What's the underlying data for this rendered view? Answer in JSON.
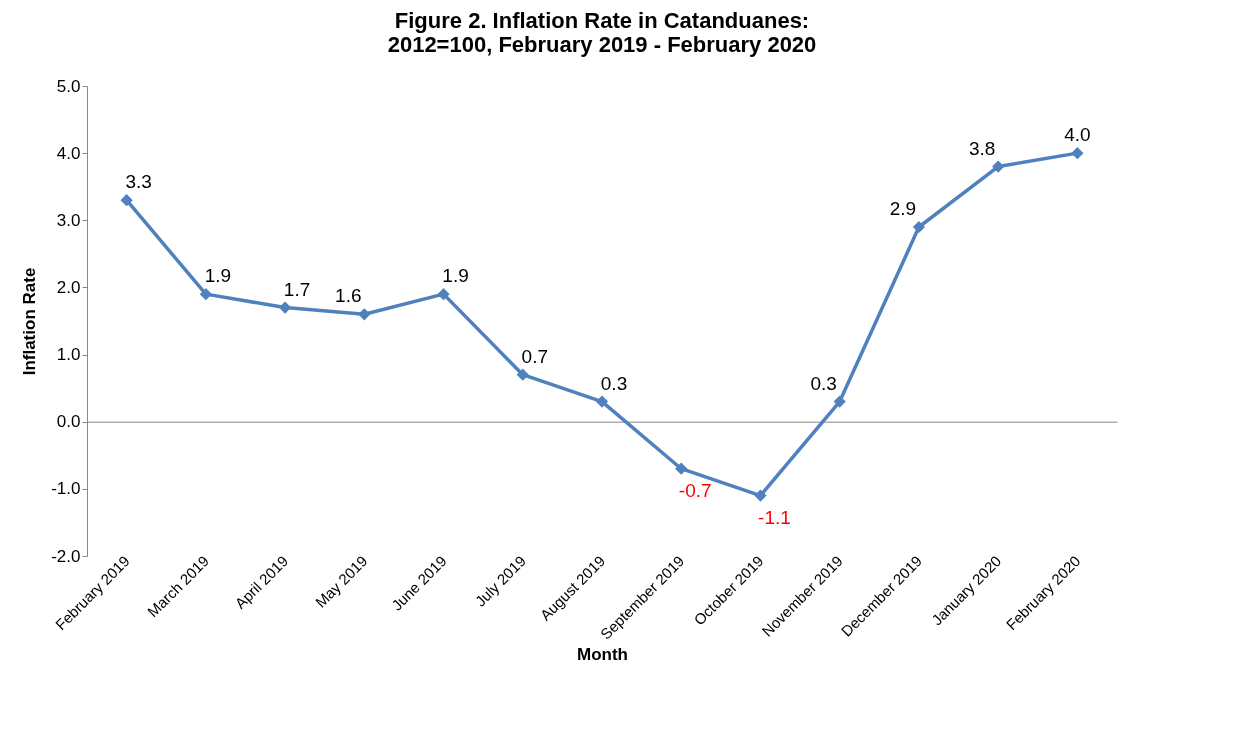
{
  "chart_data": {
    "type": "line",
    "title": "Figure 2. Inflation Rate in Catanduanes:\n2012=100, February 2019 - February 2020",
    "xlabel": "Month",
    "ylabel": "Inflation Rate",
    "categories": [
      "February 2019",
      "March 2019",
      "April 2019",
      "May 2019",
      "June 2019",
      "July 2019",
      "August 2019",
      "September 2019",
      "October 2019",
      "November 2019",
      "December 2019",
      "January 2020",
      "February 2020"
    ],
    "series": [
      {
        "color": "#4f81bd",
        "values": [
          3.3,
          1.9,
          1.7,
          1.6,
          1.9,
          0.7,
          0.3,
          -0.7,
          -1.1,
          0.3,
          2.9,
          3.8,
          4.0
        ],
        "value_labels": [
          "3.3",
          "1.9",
          "1.7",
          "1.6",
          "1.9",
          "0.7",
          "0.3",
          "-0.7",
          "-1.1",
          "0.3",
          "2.9",
          "3.8",
          "4.0"
        ]
      }
    ],
    "ylim": [
      -2,
      5
    ],
    "yticks": [
      {
        "value": -2,
        "label": "-2.0"
      },
      {
        "value": -1,
        "label": "-1.0"
      },
      {
        "value": 0,
        "label": "0.0"
      },
      {
        "value": 1,
        "label": "1.0"
      },
      {
        "value": 2,
        "label": "2.0"
      },
      {
        "value": 3,
        "label": "3.0"
      },
      {
        "value": 4,
        "label": "4.0"
      },
      {
        "value": 5,
        "label": "5.0"
      }
    ],
    "marker": "diamond",
    "line_style": "solid"
  }
}
